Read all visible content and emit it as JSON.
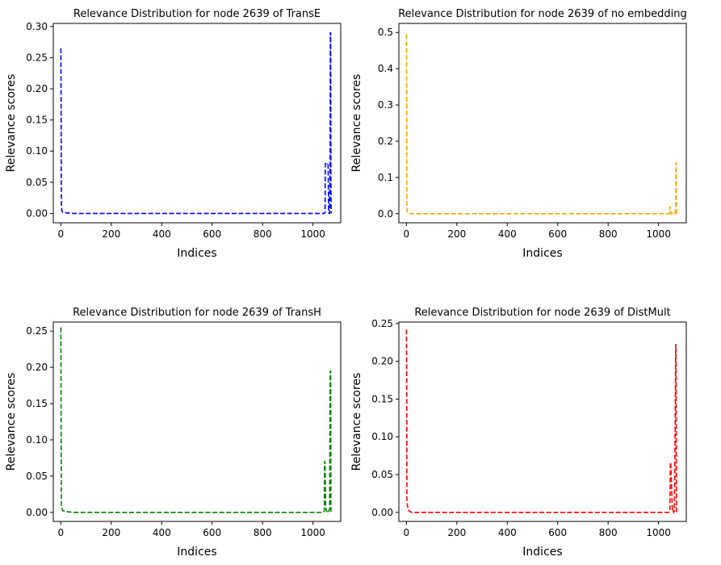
{
  "chart_data": [
    {
      "type": "line",
      "title": "Relevance Distribution for node  2639 of TransE",
      "xlabel": "Indices",
      "ylabel": "Relevance scores",
      "xlim": [
        -30,
        1110
      ],
      "ylim": [
        -0.015,
        0.305
      ],
      "xticks": [
        0,
        200,
        400,
        600,
        800,
        1000
      ],
      "xtick_labels": [
        "0",
        "200",
        "400",
        "600",
        "800",
        "1000"
      ],
      "yticks": [
        0.0,
        0.05,
        0.1,
        0.15,
        0.2,
        0.25,
        0.3
      ],
      "ytick_labels": [
        "0.00",
        "0.05",
        "0.10",
        "0.15",
        "0.20",
        "0.25",
        "0.30"
      ],
      "grid": false,
      "series": [
        {
          "color": "#0000ff",
          "linestyle": "dashed",
          "x": [
            0,
            1,
            2,
            3,
            4,
            5,
            8,
            12,
            20,
            50,
            200,
            400,
            600,
            800,
            1000,
            1045,
            1048,
            1049,
            1050,
            1052,
            1055,
            1058,
            1060,
            1062,
            1064,
            1066,
            1068,
            1069,
            1070,
            1071,
            1072,
            1073
          ],
          "y": [
            0.265,
            0.18,
            0.02,
            0.008,
            0.005,
            0.003,
            0.002,
            0.001,
            0.001,
            0.0,
            0.0,
            0.0,
            0.0,
            0.0,
            0.0,
            0.0,
            0.002,
            0.08,
            0.08,
            0.08,
            0.078,
            0.079,
            0.078,
            0.002,
            0.0,
            0.0,
            0.08,
            0.29,
            0.29,
            0.055,
            0.003,
            0.0
          ]
        }
      ]
    },
    {
      "type": "line",
      "title": "Relevance Distribution for node  2639 of no embedding",
      "xlabel": "Indices",
      "ylabel": "Relevance scores",
      "xlim": [
        -30,
        1110
      ],
      "ylim": [
        -0.025,
        0.525
      ],
      "xticks": [
        0,
        200,
        400,
        600,
        800,
        1000
      ],
      "xtick_labels": [
        "0",
        "200",
        "400",
        "600",
        "800",
        "1000"
      ],
      "yticks": [
        0.0,
        0.1,
        0.2,
        0.3,
        0.4,
        0.5
      ],
      "ytick_labels": [
        "0.0",
        "0.1",
        "0.2",
        "0.3",
        "0.4",
        "0.5"
      ],
      "grid": false,
      "series": [
        {
          "color": "#ffa500",
          "linestyle": "dashed",
          "x": [
            0,
            1,
            2,
            3,
            4,
            6,
            10,
            20,
            50,
            200,
            400,
            600,
            800,
            1000,
            1040,
            1043,
            1045,
            1047,
            1050,
            1055,
            1060,
            1065,
            1068,
            1069,
            1070,
            1071,
            1072,
            1073
          ],
          "y": [
            0.495,
            0.32,
            0.03,
            0.005,
            0.003,
            0.002,
            0.001,
            0.0,
            0.0,
            0.0,
            0.0,
            0.0,
            0.0,
            0.0,
            0.0,
            0.0,
            0.018,
            0.018,
            0.0,
            0.0,
            0.002,
            0.0,
            0.015,
            0.14,
            0.14,
            0.005,
            0.0,
            0.0
          ]
        }
      ]
    },
    {
      "type": "line",
      "title": "Relevance Distribution for node  2639 of TransH",
      "xlabel": "Indices",
      "ylabel": "Relevance scores",
      "xlim": [
        -30,
        1110
      ],
      "ylim": [
        -0.0125,
        0.2625
      ],
      "xticks": [
        0,
        200,
        400,
        600,
        800,
        1000
      ],
      "xtick_labels": [
        "0",
        "200",
        "400",
        "600",
        "800",
        "1000"
      ],
      "yticks": [
        0.0,
        0.05,
        0.1,
        0.15,
        0.2,
        0.25
      ],
      "ytick_labels": [
        "0.00",
        "0.05",
        "0.10",
        "0.15",
        "0.20",
        "0.25"
      ],
      "grid": false,
      "series": [
        {
          "color": "#008000",
          "linestyle": "dashed",
          "x": [
            0,
            1,
            2,
            3,
            4,
            6,
            10,
            20,
            50,
            200,
            400,
            600,
            800,
            1000,
            1040,
            1045,
            1046,
            1047,
            1048,
            1050,
            1052,
            1055,
            1058,
            1060,
            1063,
            1066,
            1068,
            1069,
            1070,
            1071,
            1072
          ],
          "y": [
            0.255,
            0.14,
            0.012,
            0.008,
            0.006,
            0.003,
            0.002,
            0.001,
            0.0,
            0.0,
            0.0,
            0.0,
            0.0,
            0.0,
            0.0,
            0.002,
            0.07,
            0.07,
            0.065,
            0.01,
            0.003,
            0.001,
            0.002,
            0.0,
            0.002,
            0.005,
            0.19,
            0.195,
            0.195,
            0.002,
            0.0
          ]
        }
      ]
    },
    {
      "type": "line",
      "title": "Relevance Distribution for node  2639 of DistMult",
      "xlabel": "Indices",
      "ylabel": "Relevance scores",
      "xlim": [
        -30,
        1110
      ],
      "ylim": [
        -0.012,
        0.252
      ],
      "xticks": [
        0,
        200,
        400,
        600,
        800,
        1000
      ],
      "xtick_labels": [
        "0",
        "200",
        "400",
        "600",
        "800",
        "1000"
      ],
      "yticks": [
        0.0,
        0.05,
        0.1,
        0.15,
        0.2,
        0.25
      ],
      "ytick_labels": [
        "0.00",
        "0.05",
        "0.10",
        "0.15",
        "0.20",
        "0.25"
      ],
      "grid": false,
      "series": [
        {
          "color": "#ff0000",
          "linestyle": "dashed",
          "x": [
            0,
            1,
            2,
            3,
            4,
            6,
            10,
            20,
            50,
            200,
            400,
            600,
            800,
            1000,
            1040,
            1045,
            1047,
            1048,
            1050,
            1053,
            1055,
            1058,
            1060,
            1063,
            1066,
            1068,
            1069,
            1070,
            1071,
            1072,
            1073
          ],
          "y": [
            0.242,
            0.18,
            0.013,
            0.011,
            0.01,
            0.005,
            0.002,
            0.0,
            0.0,
            0.0,
            0.0,
            0.0,
            0.0,
            0.0,
            0.0,
            0.002,
            0.066,
            0.066,
            0.05,
            0.02,
            0.002,
            0.003,
            0.0,
            0.002,
            0.12,
            0.222,
            0.222,
            0.13,
            0.002,
            0.0,
            0.0
          ]
        }
      ]
    }
  ]
}
